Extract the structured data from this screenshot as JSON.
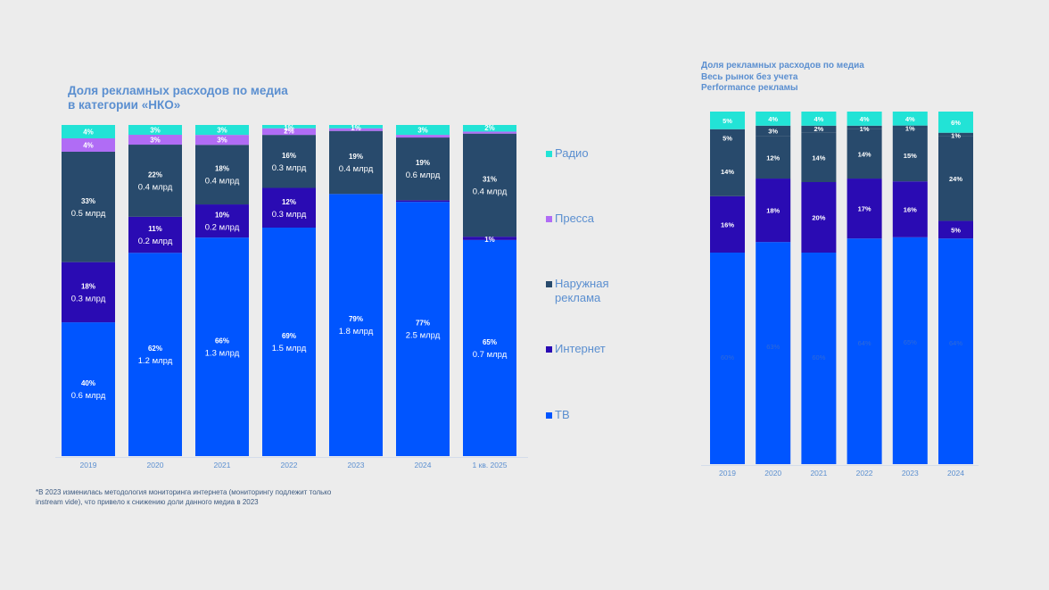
{
  "chart_data": [
    {
      "type": "bar",
      "stacked": true,
      "title": "Доля рекламных расходов по медиа в категории «НКО»",
      "xlabel": "",
      "ylabel": "",
      "ylim": [
        0,
        100
      ],
      "grid": false,
      "legend_position": "right",
      "categories": [
        "2019",
        "2020",
        "2021",
        "2022",
        "2023",
        "2024",
        "1 кв. 2025"
      ],
      "series": [
        {
          "name": "ТВ",
          "color": "#0055ff",
          "values": [
            40,
            62,
            66,
            69,
            79,
            77,
            65
          ],
          "labels": [
            "40%",
            "62%",
            "66%",
            "69%",
            "79%",
            "77%",
            "65%"
          ],
          "amounts": [
            "0.6 млрд",
            "1.2 млрд",
            "1.3 млрд",
            "1.5 млрд",
            "1.8 млрд",
            "2.5 млрд",
            "0.7 млрд"
          ]
        },
        {
          "name": "Интернет",
          "color": "#2a0bb3",
          "values": [
            18,
            11,
            10,
            12,
            0,
            0.5,
            1
          ],
          "labels": [
            "18%",
            "11%",
            "10%",
            "12%",
            "",
            "",
            "1%"
          ],
          "amounts": [
            "0.3 млрд",
            "0.2 млрд",
            "0.2 млрд",
            "0.3 млрд",
            "",
            "",
            ""
          ]
        },
        {
          "name": "Наружная реклама",
          "color": "#284a6c",
          "values": [
            33,
            22,
            18,
            16,
            19,
            19,
            31
          ],
          "labels": [
            "33%",
            "22%",
            "18%",
            "16%",
            "19%",
            "19%",
            "31%"
          ],
          "amounts": [
            "0.5 млрд",
            "0.4 млрд",
            "0.4 млрд",
            "0.3 млрд",
            "0.4 млрд",
            "0.6 млрд",
            "0.4 млрд"
          ]
        },
        {
          "name": "Пресса",
          "color": "#b06cf5",
          "values": [
            4,
            3,
            3,
            2,
            0.8,
            0.8,
            0.6
          ],
          "labels": [
            "4%",
            "3%",
            "3%",
            "2%",
            "",
            "",
            ""
          ],
          "amounts": [
            "",
            "",
            "",
            "",
            "",
            "",
            ""
          ]
        },
        {
          "name": "Радио",
          "color": "#22e3d6",
          "values": [
            4,
            3,
            3,
            1,
            1,
            3,
            2
          ],
          "labels": [
            "4%",
            "3%",
            "3%",
            "1%",
            "1%",
            "3%",
            "2%"
          ],
          "amounts": [
            "",
            "",
            "",
            "",
            "",
            "",
            ""
          ]
        }
      ]
    },
    {
      "type": "bar",
      "stacked": true,
      "title": "Доля рекламных расходов по медиа Весь рынок без учета Performance рекламы",
      "xlabel": "",
      "ylabel": "",
      "ylim": [
        0,
        100
      ],
      "grid": false,
      "legend_position": "none",
      "categories": [
        "2019",
        "2020",
        "2021",
        "2022",
        "2023",
        "2024"
      ],
      "series": [
        {
          "name": "ТВ",
          "color": "#0055ff",
          "values": [
            60,
            63,
            60,
            64,
            65,
            64
          ],
          "labels": [
            "60%",
            "63%",
            "60%",
            "64%",
            "65%",
            "64%"
          ]
        },
        {
          "name": "Интернет",
          "color": "#2a0bb3",
          "values": [
            16,
            18,
            20,
            17,
            16,
            5
          ],
          "labels": [
            "16%",
            "18%",
            "20%",
            "17%",
            "16%",
            "5%"
          ]
        },
        {
          "name": "Наружная реклама",
          "color": "#284a6c",
          "values": [
            14,
            12,
            14,
            14,
            15,
            24
          ],
          "labels": [
            "14%",
            "12%",
            "14%",
            "14%",
            "15%",
            "24%"
          ]
        },
        {
          "name": "Пресса",
          "color": "#284a6c",
          "values": [
            5,
            3,
            2,
            1,
            1,
            1
          ],
          "labels": [
            "5%",
            "3%",
            "2%",
            "1%",
            "1%",
            "1%"
          ]
        },
        {
          "name": "Радио",
          "color": "#22e3d6",
          "values": [
            5,
            4,
            4,
            4,
            4,
            6
          ],
          "labels": [
            "5%",
            "4%",
            "4%",
            "4%",
            "4%",
            "6%"
          ]
        }
      ]
    }
  ],
  "page": {
    "title_left_line1": "Доля рекламных расходов по медиа",
    "title_left_line2": "в категории  «НКО»",
    "title_right_line1": "Доля рекламных расходов по медиа",
    "title_right_line2": "Весь рынок без учета",
    "title_right_line3": "Performance рекламы",
    "footnote_line1": "*В 2023 изменилась методология мониторинга интернета (мониторингу подлежит только",
    "footnote_line2": "instream vide), что привело к снижению доли данного медиа в 2023"
  },
  "legend": [
    {
      "label_line1": "Радио",
      "label_line2": "",
      "color": "#22e3d6"
    },
    {
      "label_line1": "Пресса",
      "label_line2": "",
      "color": "#b06cf5"
    },
    {
      "label_line1": "Наружная",
      "label_line2": "реклама",
      "color": "#284a6c"
    },
    {
      "label_line1": "Интернет",
      "label_line2": "",
      "color": "#2a0bb3"
    },
    {
      "label_line1": "ТВ",
      "label_line2": "",
      "color": "#0055ff"
    }
  ]
}
